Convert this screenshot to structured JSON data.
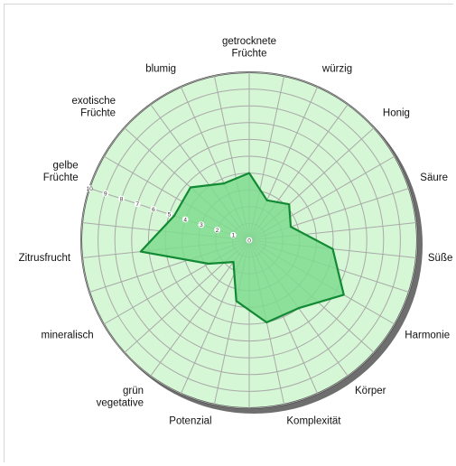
{
  "chart_data": {
    "type": "radar",
    "title": "",
    "axes": [
      "getrocknete Früchte",
      "würzig",
      "Honig",
      "Säure",
      "Süße",
      "Harmonie",
      "Körper",
      "Komplexität",
      "Potenzial",
      "grün vegetative",
      "mineralisch",
      "Zitrusfrucht",
      "gelbe Früchte",
      "exotische Früchte",
      "blumig"
    ],
    "axis_label_lines": [
      [
        "getrocknete",
        "Früchte"
      ],
      [
        "würzig"
      ],
      [
        "Honig"
      ],
      [
        "Säure"
      ],
      [
        "Süße"
      ],
      [
        "Harmonie"
      ],
      [
        "Körper"
      ],
      [
        "Komplexität"
      ],
      [
        "Potenzial"
      ],
      [
        "grün",
        "vegetative"
      ],
      [
        "mineralisch"
      ],
      [
        "Zitrusfrucht"
      ],
      [
        "gelbe",
        "Früchte"
      ],
      [
        "exotische",
        "Früchte"
      ],
      [
        "blumig"
      ]
    ],
    "tick_labels": [
      "0",
      "1",
      "2",
      "3",
      "4",
      "5",
      "6",
      "7",
      "8",
      "9",
      "10"
    ],
    "range": [
      0,
      10
    ],
    "series": [
      {
        "values": [
          4.0,
          2.6,
          3.2,
          2.6,
          5.0,
          6.5,
          5.0,
          5.0,
          3.7,
          1.6,
          2.8,
          6.5,
          4.7,
          4.7,
          3.7
        ]
      }
    ],
    "colors": {
      "background": "#d6f7d6",
      "grid": "#a9a9a9",
      "fill": "#7fdc8f",
      "stroke": "#128a34",
      "border": "#3a3a3a",
      "shadow": "#6e6e6e"
    }
  }
}
